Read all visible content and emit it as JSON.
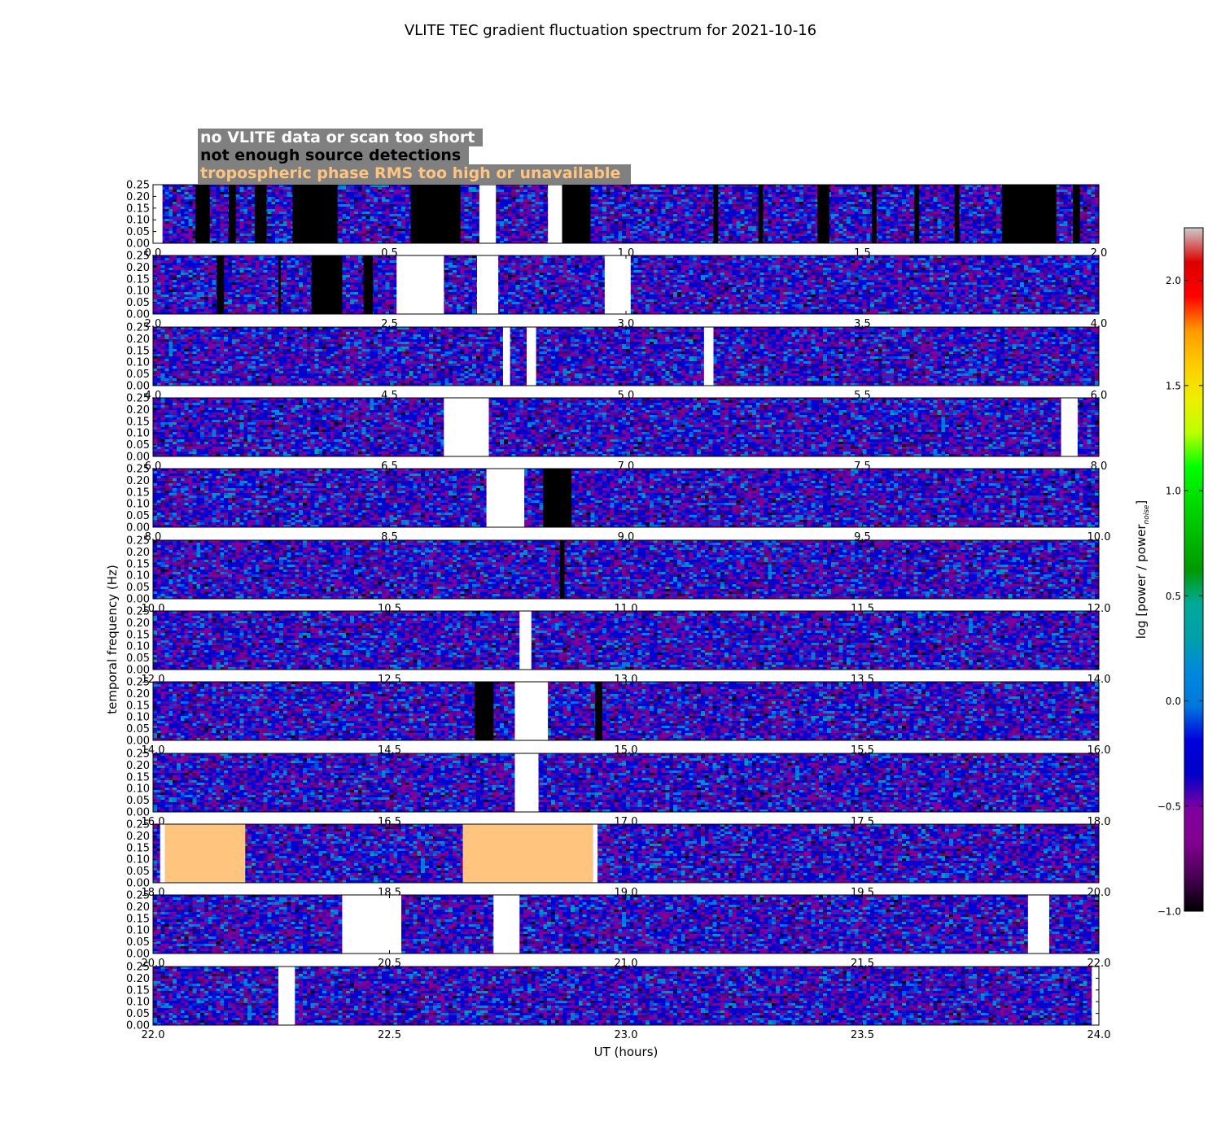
{
  "chart_data": {
    "type": "heatmap",
    "title": "VLITE TEC gradient fluctuation spectrum for 2021-10-16",
    "xlabel": "UT (hours)",
    "ylabel": "temporal frequency (Hz)",
    "y_range": [
      0.0,
      0.25
    ],
    "y_ticks": [
      "0.00",
      "0.05",
      "0.10",
      "0.15",
      "0.20",
      "0.25"
    ],
    "colorbar": {
      "label_main": "log [power / power",
      "label_sub": "noise",
      "label_close": "]",
      "range": [
        -1.0,
        2.25
      ],
      "ticks": [
        "2.0",
        "1.5",
        "1.0",
        "0.5",
        "0.0",
        "−0.5",
        "−1.0"
      ],
      "tick_values": [
        2.0,
        1.5,
        1.0,
        0.5,
        0.0,
        -0.5,
        -1.0
      ],
      "colormap": "nipy_spectral"
    },
    "legend": [
      {
        "text": "no VLITE data or scan too short",
        "color": "#ffffff",
        "box": "#808080"
      },
      {
        "text": "not enough source detections",
        "color": "#000000",
        "box": "#808080"
      },
      {
        "text": "tropospheric phase RMS too high or unavailable",
        "color": "#ffc57f",
        "box": "#808080"
      }
    ],
    "flag_colors": {
      "no_data": "#ffffff",
      "few_detections": "#000000",
      "tropo": "#ffc57f"
    },
    "panels": [
      {
        "x_range": [
          0,
          2
        ],
        "ticks": [
          "0.0",
          "0.5",
          "1.0",
          "1.5",
          "2.0"
        ],
        "flags": [
          {
            "type": "no_data",
            "start": 0.0,
            "end": 0.02
          },
          {
            "type": "few_detections",
            "start": 0.09,
            "end": 0.12
          },
          {
            "type": "few_detections",
            "start": 0.16,
            "end": 0.175
          },
          {
            "type": "few_detections",
            "start": 0.215,
            "end": 0.24
          },
          {
            "type": "few_detections",
            "start": 0.295,
            "end": 0.39
          },
          {
            "type": "few_detections",
            "start": 0.545,
            "end": 0.65
          },
          {
            "type": "no_data",
            "start": 0.69,
            "end": 0.725
          },
          {
            "type": "no_data",
            "start": 0.835,
            "end": 0.865
          },
          {
            "type": "few_detections",
            "start": 0.865,
            "end": 0.925
          },
          {
            "type": "few_detections",
            "start": 1.185,
            "end": 1.195
          },
          {
            "type": "few_detections",
            "start": 1.28,
            "end": 1.29
          },
          {
            "type": "few_detections",
            "start": 1.405,
            "end": 1.43
          },
          {
            "type": "few_detections",
            "start": 1.52,
            "end": 1.53
          },
          {
            "type": "few_detections",
            "start": 1.61,
            "end": 1.62
          },
          {
            "type": "few_detections",
            "start": 1.695,
            "end": 1.705
          },
          {
            "type": "few_detections",
            "start": 1.795,
            "end": 1.91
          },
          {
            "type": "few_detections",
            "start": 1.945,
            "end": 1.96
          }
        ]
      },
      {
        "x_range": [
          2,
          4
        ],
        "ticks": [
          "2.0",
          "2.5",
          "3.0",
          "3.5",
          "4.0"
        ],
        "flags": [
          {
            "type": "few_detections",
            "start": 2.135,
            "end": 2.15
          },
          {
            "type": "few_detections",
            "start": 2.265,
            "end": 2.27
          },
          {
            "type": "few_detections",
            "start": 2.335,
            "end": 2.4
          },
          {
            "type": "few_detections",
            "start": 2.445,
            "end": 2.465
          },
          {
            "type": "no_data",
            "start": 2.515,
            "end": 2.615
          },
          {
            "type": "no_data",
            "start": 2.685,
            "end": 2.73
          },
          {
            "type": "no_data",
            "start": 2.955,
            "end": 3.01
          }
        ]
      },
      {
        "x_range": [
          4,
          6
        ],
        "ticks": [
          "4.0",
          "4.5",
          "5.0",
          "5.5",
          "6.0"
        ],
        "flags": [
          {
            "type": "no_data",
            "start": 4.74,
            "end": 4.755
          },
          {
            "type": "no_data",
            "start": 4.79,
            "end": 4.81
          },
          {
            "type": "no_data",
            "start": 5.165,
            "end": 5.185
          }
        ]
      },
      {
        "x_range": [
          6,
          8
        ],
        "ticks": [
          "6.0",
          "6.5",
          "7.0",
          "7.5",
          "8.0"
        ],
        "flags": [
          {
            "type": "no_data",
            "start": 6.615,
            "end": 6.71
          },
          {
            "type": "no_data",
            "start": 7.92,
            "end": 7.955
          }
        ]
      },
      {
        "x_range": [
          8,
          10
        ],
        "ticks": [
          "8.0",
          "8.5",
          "9.0",
          "9.5",
          "10.0"
        ],
        "flags": [
          {
            "type": "no_data",
            "start": 8.705,
            "end": 8.785
          },
          {
            "type": "few_detections",
            "start": 8.825,
            "end": 8.885
          }
        ]
      },
      {
        "x_range": [
          10,
          12
        ],
        "ticks": [
          "10.0",
          "10.5",
          "11.0",
          "11.5",
          "12.0"
        ],
        "flags": [
          {
            "type": "few_detections",
            "start": 10.86,
            "end": 10.87
          }
        ]
      },
      {
        "x_range": [
          12,
          14
        ],
        "ticks": [
          "12.0",
          "12.5",
          "13.0",
          "13.5",
          "14.0"
        ],
        "flags": [
          {
            "type": "no_data",
            "start": 12.775,
            "end": 12.8
          }
        ]
      },
      {
        "x_range": [
          14,
          16
        ],
        "ticks": [
          "14.0",
          "14.5",
          "15.0",
          "15.5",
          "16.0"
        ],
        "flags": [
          {
            "type": "few_detections",
            "start": 14.68,
            "end": 14.72
          },
          {
            "type": "no_data",
            "start": 14.765,
            "end": 14.835
          },
          {
            "type": "few_detections",
            "start": 14.935,
            "end": 14.95
          }
        ]
      },
      {
        "x_range": [
          16,
          18
        ],
        "ticks": [
          "16.0",
          "16.5",
          "17.0",
          "17.5",
          "18.0"
        ],
        "flags": [
          {
            "type": "no_data",
            "start": 16.765,
            "end": 16.815
          }
        ]
      },
      {
        "x_range": [
          18,
          20
        ],
        "ticks": [
          "18.0",
          "18.5",
          "19.0",
          "19.5",
          "20.0"
        ],
        "flags": [
          {
            "type": "no_data",
            "start": 18.015,
            "end": 18.025
          },
          {
            "type": "tropo",
            "start": 18.025,
            "end": 18.195
          },
          {
            "type": "tropo",
            "start": 18.655,
            "end": 18.93
          },
          {
            "type": "no_data",
            "start": 18.93,
            "end": 18.94
          }
        ]
      },
      {
        "x_range": [
          20,
          22
        ],
        "ticks": [
          "20.0",
          "20.5",
          "21.0",
          "21.5",
          "22.0"
        ],
        "flags": [
          {
            "type": "no_data",
            "start": 20.4,
            "end": 20.525
          },
          {
            "type": "no_data",
            "start": 20.72,
            "end": 20.775
          },
          {
            "type": "no_data",
            "start": 21.85,
            "end": 21.895
          }
        ]
      },
      {
        "x_range": [
          22,
          24
        ],
        "ticks": [
          "22.0",
          "22.5",
          "23.0",
          "23.5",
          "24.0"
        ],
        "flags": [
          {
            "type": "no_data",
            "start": 22.265,
            "end": 22.3
          },
          {
            "type": "no_data",
            "start": 23.985,
            "end": 24.0
          }
        ]
      }
    ]
  }
}
